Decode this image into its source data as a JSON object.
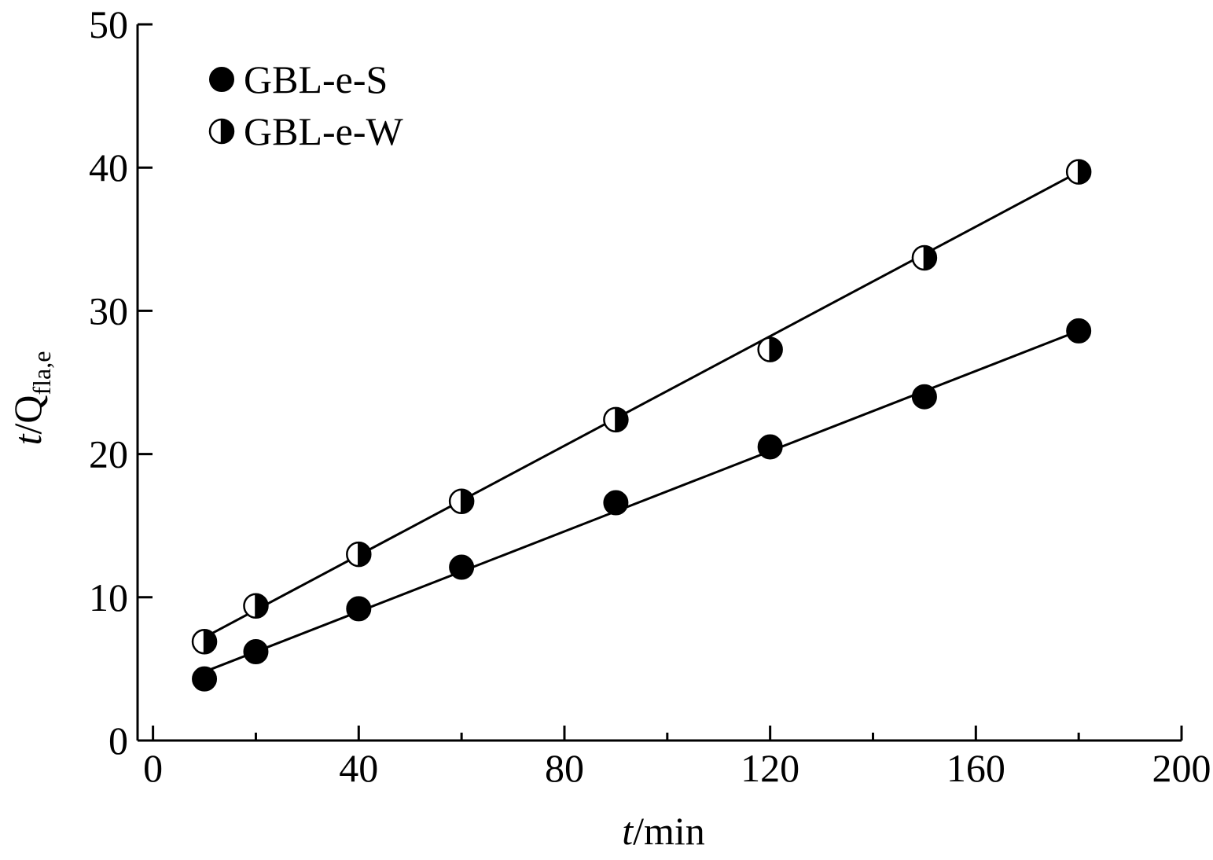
{
  "chart_data": {
    "type": "scatter",
    "title": "",
    "xlabel": {
      "italic": "t",
      "rest": "/min"
    },
    "ylabel": {
      "italic": "t",
      "rest": "/Q",
      "sub": "fla,e"
    },
    "xlim": [
      -3,
      200
    ],
    "ylim": [
      0,
      50
    ],
    "xticks": [
      0,
      40,
      80,
      120,
      160,
      200
    ],
    "xticks_minor": [
      20,
      60,
      100,
      140,
      180
    ],
    "yticks": [
      0,
      10,
      20,
      30,
      40,
      50
    ],
    "grid": false,
    "legend_position": "top-left",
    "series": [
      {
        "name": "GBL-e-S",
        "marker": "filled-circle",
        "color": "#000000",
        "x": [
          10,
          20,
          40,
          60,
          90,
          120,
          150,
          180
        ],
        "y": [
          4.3,
          6.2,
          9.2,
          12.1,
          16.6,
          20.5,
          24.0,
          28.6
        ],
        "fit": {
          "x0": 10,
          "y0": 4.8,
          "x1": 180,
          "y1": 28.6
        }
      },
      {
        "name": "GBL-e-W",
        "marker": "half-circle",
        "color": "#000000",
        "x": [
          10,
          20,
          40,
          60,
          90,
          120,
          150,
          180
        ],
        "y": [
          6.9,
          9.4,
          13.0,
          16.7,
          22.4,
          27.3,
          33.7,
          39.7
        ],
        "fit": {
          "x0": 10,
          "y0": 7.2,
          "x1": 180,
          "y1": 39.7
        }
      }
    ]
  }
}
